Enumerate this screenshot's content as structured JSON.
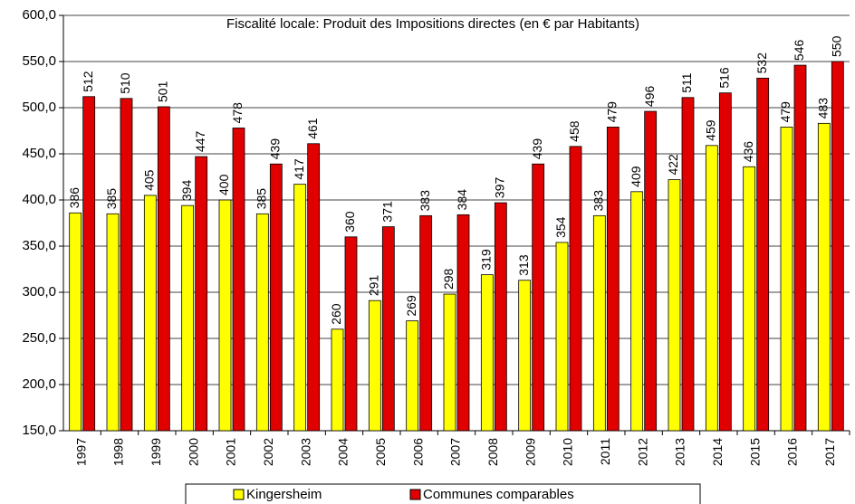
{
  "chart_data": {
    "type": "bar",
    "title": "Fiscalité locale: Produit des Impositions directes (en € par Habitants)",
    "categories": [
      "1997",
      "1998",
      "1999",
      "2000",
      "2001",
      "2002",
      "2003",
      "2004",
      "2005",
      "2006",
      "2007",
      "2008",
      "2009",
      "2010",
      "2011",
      "2012",
      "2013",
      "2014",
      "2015",
      "2016",
      "2017"
    ],
    "series": [
      {
        "name": "Kingersheim",
        "color": "#ffff00",
        "values": [
          386,
          385,
          405,
          394,
          400,
          385,
          417,
          260,
          291,
          269,
          298,
          319,
          313,
          354,
          383,
          409,
          422,
          459,
          436,
          479,
          483
        ]
      },
      {
        "name": "Communes comparables",
        "color": "#e00000",
        "values": [
          512,
          510,
          501,
          447,
          478,
          439,
          461,
          360,
          371,
          383,
          384,
          397,
          439,
          458,
          479,
          496,
          511,
          516,
          532,
          546,
          550
        ]
      }
    ],
    "ylim": [
      150,
      600
    ],
    "yticks": [
      {
        "value": 150,
        "label": "150,0"
      },
      {
        "value": 200,
        "label": "200,0"
      },
      {
        "value": 250,
        "label": "250,0"
      },
      {
        "value": 300,
        "label": "300,0"
      },
      {
        "value": 350,
        "label": "350,0"
      },
      {
        "value": 400,
        "label": "400,0"
      },
      {
        "value": 450,
        "label": "450,0"
      },
      {
        "value": 500,
        "label": "500,0"
      },
      {
        "value": 550,
        "label": "550,0"
      },
      {
        "value": 600,
        "label": "600,0"
      }
    ],
    "grid": true,
    "legend": "bottom"
  }
}
